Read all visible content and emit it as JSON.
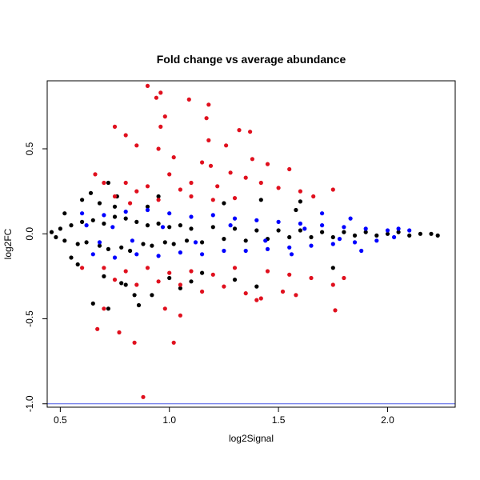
{
  "chart_data": {
    "type": "scatter",
    "title": "Fold change vs average abundance",
    "xlabel": "log2Signal",
    "ylabel": "log2FC",
    "xlim": [
      0.44,
      2.31
    ],
    "ylim": [
      -1.02,
      0.9
    ],
    "x_ticks": [
      0.5,
      1.0,
      1.5,
      2.0
    ],
    "x_tick_labels": [
      "0.5",
      "1.0",
      "1.5",
      "2.0"
    ],
    "y_ticks": [
      -1.0,
      -0.5,
      0.0,
      0.5
    ],
    "y_tick_labels": [
      "-1.0",
      "-0.5",
      "0.0",
      "0.5"
    ],
    "grid": false,
    "reference_line": {
      "y": -1.0,
      "color": "#4a5ae6"
    },
    "series": [
      {
        "color": "#000000",
        "description": "dense central band of points around log2FC = 0",
        "points": [
          [
            0.46,
            0.01
          ],
          [
            0.48,
            -0.02
          ],
          [
            0.5,
            0.03
          ],
          [
            0.52,
            -0.04
          ],
          [
            0.55,
            0.05
          ],
          [
            0.58,
            -0.06
          ],
          [
            0.6,
            0.07
          ],
          [
            0.62,
            -0.05
          ],
          [
            0.65,
            0.08
          ],
          [
            0.68,
            -0.07
          ],
          [
            0.7,
            0.06
          ],
          [
            0.72,
            -0.09
          ],
          [
            0.75,
            0.1
          ],
          [
            0.78,
            -0.08
          ],
          [
            0.8,
            0.09
          ],
          [
            0.82,
            -0.1
          ],
          [
            0.85,
            0.07
          ],
          [
            0.88,
            -0.06
          ],
          [
            0.9,
            0.05
          ],
          [
            0.92,
            -0.07
          ],
          [
            0.95,
            0.06
          ],
          [
            0.98,
            -0.05
          ],
          [
            1.0,
            0.04
          ],
          [
            1.02,
            -0.06
          ],
          [
            1.05,
            0.05
          ],
          [
            1.08,
            -0.04
          ],
          [
            1.1,
            0.03
          ],
          [
            1.15,
            -0.05
          ],
          [
            1.2,
            0.04
          ],
          [
            1.25,
            -0.03
          ],
          [
            1.3,
            0.03
          ],
          [
            1.35,
            -0.04
          ],
          [
            1.4,
            0.02
          ],
          [
            1.45,
            -0.03
          ],
          [
            1.5,
            0.02
          ],
          [
            1.55,
            -0.02
          ],
          [
            1.6,
            0.02
          ],
          [
            1.65,
            -0.02
          ],
          [
            1.7,
            0.01
          ],
          [
            1.75,
            -0.02
          ],
          [
            1.8,
            0.01
          ],
          [
            1.85,
            -0.01
          ],
          [
            1.9,
            0.01
          ],
          [
            1.95,
            -0.01
          ],
          [
            2.0,
            0.0
          ],
          [
            2.05,
            0.01
          ],
          [
            2.1,
            -0.01
          ],
          [
            2.15,
            0.0
          ],
          [
            2.2,
            0.0
          ],
          [
            2.23,
            -0.01
          ],
          [
            0.75,
            0.16
          ],
          [
            0.7,
            -0.25
          ],
          [
            0.78,
            -0.29
          ],
          [
            0.84,
            -0.36
          ],
          [
            0.86,
            -0.42
          ],
          [
            0.65,
            -0.41
          ],
          [
            0.72,
            -0.44
          ],
          [
            0.8,
            -0.3
          ],
          [
            0.92,
            -0.36
          ],
          [
            1.05,
            -0.32
          ],
          [
            1.1,
            -0.28
          ],
          [
            1.3,
            -0.27
          ],
          [
            0.76,
            0.22
          ],
          [
            0.72,
            0.3
          ],
          [
            0.68,
            0.18
          ],
          [
            0.6,
            0.2
          ],
          [
            0.64,
            0.24
          ],
          [
            1.25,
            0.18
          ],
          [
            1.42,
            0.2
          ],
          [
            1.58,
            0.14
          ],
          [
            1.75,
            -0.2
          ],
          [
            1.4,
            -0.31
          ],
          [
            0.55,
            -0.14
          ],
          [
            0.52,
            0.12
          ],
          [
            0.58,
            -0.18
          ],
          [
            1.0,
            -0.26
          ],
          [
            1.15,
            -0.23
          ],
          [
            0.9,
            0.16
          ],
          [
            0.95,
            0.22
          ],
          [
            1.6,
            0.19
          ]
        ]
      },
      {
        "color": "#0000ff",
        "description": "broad band of points around log2FC = 0",
        "points": [
          [
            0.6,
            0.12
          ],
          [
            0.65,
            -0.12
          ],
          [
            0.7,
            0.11
          ],
          [
            0.75,
            -0.14
          ],
          [
            0.8,
            0.13
          ],
          [
            0.85,
            -0.12
          ],
          [
            0.9,
            0.14
          ],
          [
            0.95,
            -0.13
          ],
          [
            1.0,
            0.12
          ],
          [
            1.05,
            -0.11
          ],
          [
            1.1,
            0.1
          ],
          [
            1.15,
            -0.12
          ],
          [
            1.2,
            0.11
          ],
          [
            1.25,
            -0.1
          ],
          [
            1.3,
            0.09
          ],
          [
            1.35,
            -0.1
          ],
          [
            1.4,
            0.08
          ],
          [
            1.45,
            -0.09
          ],
          [
            1.5,
            0.07
          ],
          [
            1.55,
            -0.08
          ],
          [
            1.6,
            0.06
          ],
          [
            1.65,
            -0.07
          ],
          [
            1.7,
            0.05
          ],
          [
            1.75,
            -0.06
          ],
          [
            1.8,
            0.04
          ],
          [
            1.85,
            -0.05
          ],
          [
            1.9,
            0.03
          ],
          [
            1.95,
            -0.04
          ],
          [
            2.0,
            0.02
          ],
          [
            2.03,
            -0.02
          ],
          [
            0.62,
            0.05
          ],
          [
            0.68,
            -0.05
          ],
          [
            0.74,
            0.04
          ],
          [
            0.83,
            -0.04
          ],
          [
            0.97,
            0.04
          ],
          [
            1.12,
            -0.05
          ],
          [
            1.28,
            0.05
          ],
          [
            1.44,
            -0.04
          ],
          [
            1.62,
            0.03
          ],
          [
            1.78,
            -0.03
          ],
          [
            1.83,
            0.09
          ],
          [
            1.88,
            -0.1
          ],
          [
            1.7,
            0.12
          ],
          [
            1.56,
            -0.12
          ],
          [
            2.05,
            0.03
          ],
          [
            2.1,
            0.02
          ]
        ]
      },
      {
        "color": "#e0101e",
        "description": "outlier points with larger absolute log2FC",
        "points": [
          [
            0.9,
            0.87
          ],
          [
            0.96,
            0.83
          ],
          [
            0.94,
            0.8
          ],
          [
            1.09,
            0.79
          ],
          [
            1.18,
            0.76
          ],
          [
            0.98,
            0.69
          ],
          [
            0.96,
            0.63
          ],
          [
            1.17,
            0.68
          ],
          [
            1.32,
            0.61
          ],
          [
            1.37,
            0.6
          ],
          [
            0.75,
            0.63
          ],
          [
            0.8,
            0.58
          ],
          [
            0.85,
            0.52
          ],
          [
            0.95,
            0.5
          ],
          [
            1.02,
            0.45
          ],
          [
            1.18,
            0.55
          ],
          [
            1.26,
            0.52
          ],
          [
            1.15,
            0.42
          ],
          [
            1.19,
            0.4
          ],
          [
            1.38,
            0.44
          ],
          [
            1.45,
            0.41
          ],
          [
            1.55,
            0.38
          ],
          [
            1.28,
            0.36
          ],
          [
            1.35,
            0.33
          ],
          [
            1.42,
            0.3
          ],
          [
            1.5,
            0.27
          ],
          [
            1.6,
            0.25
          ],
          [
            1.66,
            0.22
          ],
          [
            1.75,
            0.26
          ],
          [
            0.8,
            0.3
          ],
          [
            0.85,
            0.25
          ],
          [
            0.9,
            0.28
          ],
          [
            1.0,
            0.35
          ],
          [
            1.05,
            0.26
          ],
          [
            1.1,
            0.3
          ],
          [
            1.22,
            0.28
          ],
          [
            0.66,
            0.35
          ],
          [
            0.7,
            0.3
          ],
          [
            0.75,
            0.22
          ],
          [
            1.1,
            0.22
          ],
          [
            1.2,
            0.2
          ],
          [
            1.3,
            0.21
          ],
          [
            0.82,
            0.18
          ],
          [
            0.95,
            0.2
          ],
          [
            0.6,
            -0.2
          ],
          [
            0.7,
            -0.2
          ],
          [
            0.8,
            -0.22
          ],
          [
            0.9,
            -0.2
          ],
          [
            1.0,
            -0.23
          ],
          [
            1.1,
            -0.22
          ],
          [
            1.2,
            -0.24
          ],
          [
            1.3,
            -0.2
          ],
          [
            1.45,
            -0.22
          ],
          [
            1.55,
            -0.24
          ],
          [
            1.65,
            -0.26
          ],
          [
            1.75,
            -0.3
          ],
          [
            1.8,
            -0.26
          ],
          [
            0.75,
            -0.27
          ],
          [
            0.85,
            -0.3
          ],
          [
            0.95,
            -0.28
          ],
          [
            1.05,
            -0.3
          ],
          [
            1.15,
            -0.34
          ],
          [
            1.25,
            -0.31
          ],
          [
            1.35,
            -0.35
          ],
          [
            1.42,
            -0.38
          ],
          [
            1.4,
            -0.39
          ],
          [
            1.52,
            -0.34
          ],
          [
            1.58,
            -0.36
          ],
          [
            0.7,
            -0.44
          ],
          [
            0.77,
            -0.58
          ],
          [
            0.67,
            -0.56
          ],
          [
            0.84,
            -0.64
          ],
          [
            1.02,
            -0.64
          ],
          [
            0.88,
            -0.96
          ],
          [
            1.76,
            -0.45
          ],
          [
            1.05,
            -0.48
          ],
          [
            0.98,
            -0.44
          ]
        ]
      }
    ]
  }
}
